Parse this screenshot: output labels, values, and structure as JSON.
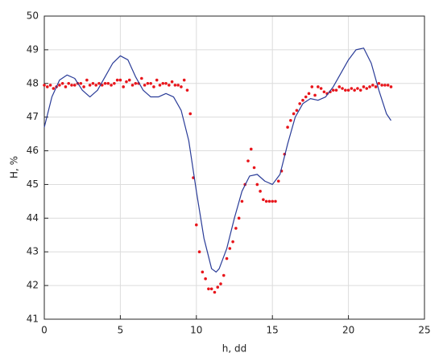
{
  "chart_data": {
    "type": "combo",
    "xlabel": "h, dd",
    "ylabel": "H, %",
    "xlim": [
      0,
      25
    ],
    "xticks": [
      0,
      5,
      10,
      15,
      20,
      25
    ],
    "ylim": [
      41,
      50
    ],
    "yticks": [
      41,
      42,
      43,
      44,
      45,
      46,
      47,
      48,
      49,
      50
    ],
    "grid": true,
    "series": [
      {
        "type": "scatter",
        "color": "#e8151b",
        "x": [
          0,
          0.2,
          0.4,
          0.6,
          0.8,
          1,
          1.2,
          1.4,
          1.6,
          1.8,
          2,
          2.2,
          2.4,
          2.6,
          2.8,
          3,
          3.2,
          3.4,
          3.6,
          3.8,
          4,
          4.2,
          4.4,
          4.6,
          4.8,
          5,
          5.2,
          5.4,
          5.6,
          5.8,
          6,
          6.2,
          6.4,
          6.6,
          6.8,
          7,
          7.2,
          7.4,
          7.6,
          7.8,
          8,
          8.2,
          8.4,
          8.6,
          8.8,
          9,
          9.2,
          9.4,
          9.6,
          9.8,
          10,
          10.2,
          10.4,
          10.6,
          10.8,
          11,
          11.2,
          11.4,
          11.6,
          11.8,
          12,
          12.2,
          12.4,
          12.6,
          12.8,
          13,
          13.2,
          13.4,
          13.6,
          13.8,
          14,
          14.2,
          14.4,
          14.6,
          14.8,
          15,
          15.2,
          15.4,
          15.6,
          15.8,
          16,
          16.2,
          16.4,
          16.6,
          16.8,
          17,
          17.2,
          17.4,
          17.6,
          17.8,
          18,
          18.2,
          18.4,
          18.6,
          18.8,
          19,
          19.2,
          19.4,
          19.6,
          19.8,
          20,
          20.2,
          20.4,
          20.6,
          20.8,
          21,
          21.2,
          21.4,
          21.6,
          21.8,
          22,
          22.2,
          22.4,
          22.6,
          22.8
        ],
        "values": [
          47.95,
          47.9,
          47.95,
          47.85,
          47.9,
          47.95,
          48.0,
          47.9,
          48.0,
          47.95,
          47.95,
          48.0,
          48.0,
          47.9,
          48.1,
          47.95,
          48.0,
          47.95,
          48.0,
          47.95,
          48.0,
          48.0,
          47.95,
          48.0,
          48.1,
          48.1,
          47.9,
          48.05,
          48.1,
          47.95,
          48.0,
          48.0,
          48.15,
          47.95,
          48.0,
          48.0,
          47.9,
          48.1,
          47.95,
          48.0,
          48.0,
          47.95,
          48.05,
          47.95,
          47.95,
          47.9,
          48.1,
          47.8,
          47.1,
          45.2,
          43.8,
          43.0,
          42.4,
          42.2,
          41.9,
          41.9,
          41.8,
          41.95,
          42.05,
          42.3,
          42.8,
          43.1,
          43.3,
          43.7,
          44.0,
          44.5,
          45.0,
          45.7,
          46.05,
          45.5,
          45.0,
          44.8,
          44.55,
          44.5,
          44.5,
          44.5,
          44.5,
          45.1,
          45.4,
          45.9,
          46.7,
          46.9,
          47.1,
          47.2,
          47.4,
          47.5,
          47.6,
          47.7,
          47.9,
          47.65,
          47.9,
          47.85,
          47.75,
          47.7,
          47.75,
          47.8,
          47.8,
          47.9,
          47.85,
          47.8,
          47.8,
          47.85,
          47.8,
          47.85,
          47.8,
          47.9,
          47.85,
          47.9,
          47.95,
          47.9,
          48.0,
          47.95,
          47.95,
          47.95,
          47.9
        ]
      },
      {
        "type": "line",
        "color": "#2a3c98",
        "x": [
          0,
          0.5,
          1,
          1.5,
          2,
          2.5,
          3,
          3.5,
          4,
          4.5,
          5,
          5.5,
          6,
          6.5,
          7,
          7.5,
          8,
          8.5,
          9,
          9.5,
          10,
          10.5,
          11,
          11.3,
          11.5,
          12,
          12.5,
          13,
          13.5,
          14,
          14.5,
          15,
          15.5,
          16,
          16.5,
          17,
          17.5,
          18,
          18.5,
          19,
          19.5,
          20,
          20.5,
          21,
          21.5,
          22,
          22.5,
          22.8
        ],
        "values": [
          46.7,
          47.6,
          48.1,
          48.25,
          48.15,
          47.8,
          47.6,
          47.8,
          48.2,
          48.6,
          48.82,
          48.7,
          48.2,
          47.8,
          47.6,
          47.6,
          47.7,
          47.6,
          47.2,
          46.3,
          44.8,
          43.4,
          42.5,
          42.4,
          42.5,
          43.1,
          44.0,
          44.8,
          45.25,
          45.3,
          45.1,
          45.0,
          45.3,
          46.2,
          47.0,
          47.4,
          47.55,
          47.5,
          47.6,
          47.9,
          48.3,
          48.7,
          49.0,
          49.05,
          48.6,
          47.8,
          47.1,
          46.9
        ]
      }
    ]
  }
}
